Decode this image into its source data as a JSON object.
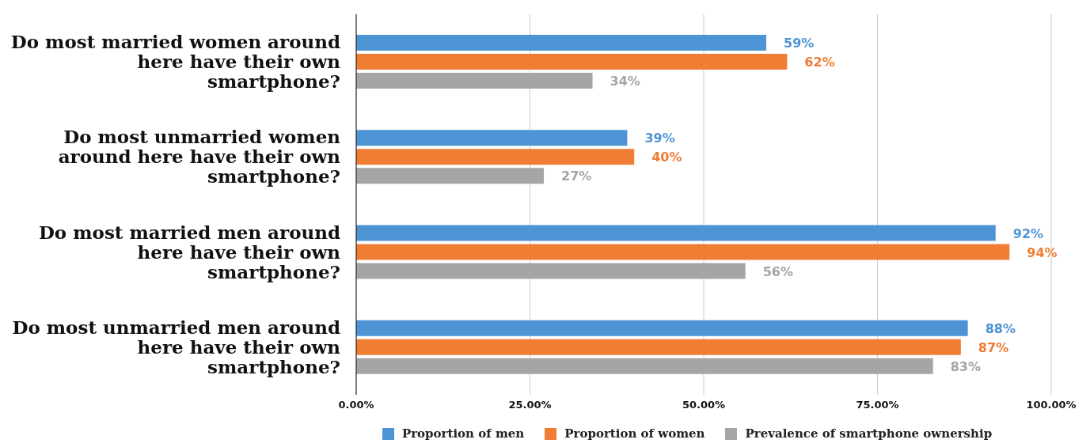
{
  "chart_data": {
    "type": "bar",
    "orientation": "horizontal",
    "categories": [
      "Do most married women around here have their own smartphone?",
      "Do most unmarried women around here have their own smartphone?",
      "Do most married men around here have their own smartphone?",
      "Do most unmarried men around here have their own smartphone?"
    ],
    "series": [
      {
        "name": "Proportion of men",
        "color": "#4e94d4",
        "values": [
          59,
          39,
          92,
          88
        ],
        "value_labels": [
          "59%",
          "39%",
          "92%",
          "88%"
        ]
      },
      {
        "name": "Proportion of women",
        "color": "#ef7d34",
        "values": [
          62,
          40,
          94,
          87
        ],
        "value_labels": [
          "62%",
          "40%",
          "94%",
          "87%"
        ]
      },
      {
        "name": "Prevalence of smartphone ownership",
        "color": "#a5a5a5",
        "values": [
          34,
          27,
          56,
          83
        ],
        "value_labels": [
          "34%",
          "27%",
          "56%",
          "83%"
        ]
      }
    ],
    "xlim": [
      0,
      100
    ],
    "xticks": [
      {
        "value": 0,
        "label": "0.00%"
      },
      {
        "value": 25,
        "label": "25.00%"
      },
      {
        "value": 50,
        "label": "50.00%"
      },
      {
        "value": 75,
        "label": "75.00%"
      },
      {
        "value": 100,
        "label": "100.00%"
      }
    ],
    "grid": "x",
    "legend": "bottom"
  }
}
